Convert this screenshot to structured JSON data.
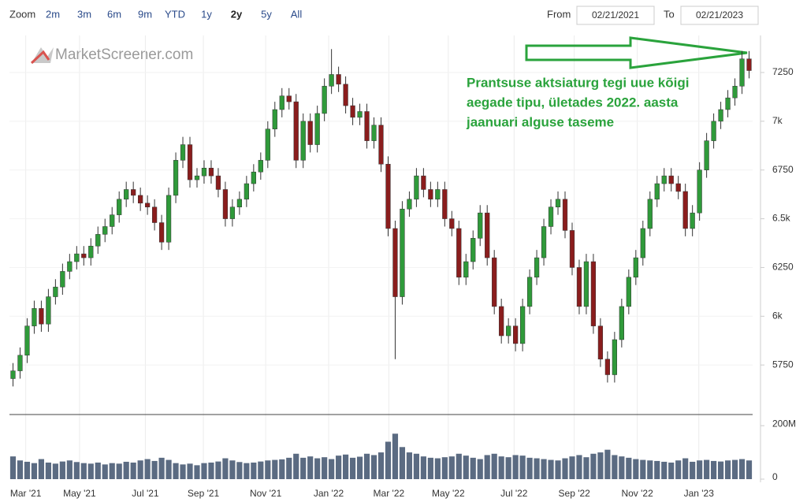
{
  "toolbar": {
    "zoom_label": "Zoom",
    "buttons": [
      "2m",
      "3m",
      "6m",
      "9m",
      "YTD",
      "1y",
      "2y",
      "5y",
      "All"
    ],
    "active": "2y",
    "from_label": "From",
    "from": "02/21/2021",
    "to_label": "To",
    "to": "02/21/2023"
  },
  "chart_data": {
    "type": "candlestick",
    "watermark": "MarketScreener.com",
    "annotation": [
      "Prantsuse aktsiaturg tegi uue kõigi",
      "aegade tipu, ületades 2022. aasta",
      "jaanuari alguse taseme"
    ],
    "up_color": "#2f9a3a",
    "down_color": "#8a1d1d",
    "volume_color": "#5b6b82",
    "grid": true,
    "xlim": [
      0,
      105
    ],
    "xticks": [
      {
        "value": 2.3,
        "label": "Mar '21"
      },
      {
        "value": 9.9,
        "label": "May '21"
      },
      {
        "value": 19.2,
        "label": "Jul '21"
      },
      {
        "value": 27.4,
        "label": "Sep '21"
      },
      {
        "value": 36.2,
        "label": "Nov '21"
      },
      {
        "value": 45.1,
        "label": "Jan '22"
      },
      {
        "value": 53.6,
        "label": "Mar '22"
      },
      {
        "value": 62,
        "label": "May '22"
      },
      {
        "value": 71.3,
        "label": "Jul '22"
      },
      {
        "value": 79.8,
        "label": "Sep '22"
      },
      {
        "value": 88.7,
        "label": "Nov '22"
      },
      {
        "value": 97.4,
        "label": "Jan '23"
      }
    ],
    "ylim": [
      5500,
      7440
    ],
    "yticks": [
      5750,
      6000,
      6250,
      6500,
      6750,
      7000,
      7250
    ],
    "ytick_labels": [
      "5750",
      "6k",
      "6250",
      "6.5k",
      "6750",
      "7k",
      "7250"
    ],
    "open": [
      5680,
      5720,
      5800,
      5950,
      6040,
      5960,
      6100,
      6150,
      6230,
      6280,
      6320,
      6300,
      6360,
      6420,
      6460,
      6520,
      6600,
      6650,
      6620,
      6580,
      6560,
      6480,
      6380,
      6620,
      6800,
      6880,
      6700,
      6720,
      6760,
      6720,
      6650,
      6500,
      6560,
      6600,
      6680,
      6740,
      6800,
      6960,
      7060,
      7130,
      7100,
      6800,
      7000,
      6880,
      7040,
      7180,
      7240,
      7190,
      7080,
      7020,
      7050,
      6900,
      6980,
      6780,
      6450,
      6100,
      6550,
      6600,
      6720,
      6650,
      6600,
      6650,
      6500,
      6450,
      6200,
      6280,
      6400,
      6530,
      6300,
      6050,
      5900,
      5950,
      5860,
      6050,
      6200,
      6300,
      6460,
      6560,
      6600,
      6440,
      6250,
      6050,
      6280,
      5950,
      5780,
      5700,
      5880,
      6050,
      6200,
      6300,
      6450,
      6600,
      6680,
      6720,
      6680,
      6640,
      6450,
      6530,
      6750,
      6900,
      7000,
      7060,
      7120,
      7180,
      7320
    ],
    "high": [
      5760,
      5840,
      5990,
      6080,
      6080,
      6140,
      6190,
      6270,
      6320,
      6360,
      6360,
      6400,
      6460,
      6500,
      6560,
      6640,
      6690,
      6690,
      6660,
      6620,
      6600,
      6520,
      6660,
      6840,
      6920,
      6920,
      6760,
      6800,
      6800,
      6760,
      6690,
      6600,
      6640,
      6720,
      6780,
      6840,
      7000,
      7100,
      7170,
      7170,
      7140,
      7040,
      7040,
      7080,
      7220,
      7370,
      7280,
      7230,
      7120,
      7090,
      7090,
      7020,
      7020,
      6820,
      6490,
      6590,
      6640,
      6760,
      6760,
      6690,
      6690,
      6690,
      6540,
      6490,
      6320,
      6440,
      6570,
      6570,
      6340,
      6090,
      5990,
      5990,
      6090,
      6240,
      6340,
      6500,
      6600,
      6640,
      6640,
      6480,
      6290,
      6320,
      6320,
      5990,
      5820,
      5920,
      6090,
      6240,
      6340,
      6490,
      6640,
      6720,
      6760,
      6760,
      6720,
      6680,
      6570,
      6790,
      6940,
      7040,
      7100,
      7160,
      7220,
      7360,
      7360
    ],
    "low": [
      5640,
      5680,
      5760,
      5910,
      5920,
      5920,
      6060,
      6110,
      6190,
      6240,
      6260,
      6260,
      6320,
      6380,
      6420,
      6480,
      6560,
      6580,
      6540,
      6520,
      6440,
      6340,
      6340,
      6580,
      6760,
      6660,
      6660,
      6680,
      6680,
      6610,
      6460,
      6460,
      6520,
      6560,
      6640,
      6700,
      6760,
      6920,
      7020,
      7060,
      6760,
      6760,
      6840,
      6840,
      7000,
      7140,
      7150,
      7040,
      6980,
      6980,
      6860,
      6860,
      6740,
      6410,
      5780,
      6060,
      6510,
      6560,
      6610,
      6560,
      6560,
      6460,
      6410,
      6160,
      6160,
      6240,
      6360,
      6260,
      6010,
      5860,
      5860,
      5820,
      5820,
      6010,
      6160,
      6260,
      6420,
      6520,
      6400,
      6210,
      6010,
      6010,
      5910,
      5740,
      5660,
      5660,
      5840,
      6010,
      6160,
      6260,
      6410,
      6560,
      6640,
      6640,
      6600,
      6410,
      6410,
      6490,
      6710,
      6860,
      6960,
      7020,
      7080,
      7140,
      7220
    ],
    "close": [
      5720,
      5800,
      5950,
      6040,
      5960,
      6100,
      6150,
      6230,
      6280,
      6320,
      6300,
      6360,
      6420,
      6460,
      6520,
      6600,
      6650,
      6620,
      6580,
      6560,
      6480,
      6380,
      6620,
      6800,
      6880,
      6700,
      6720,
      6760,
      6720,
      6650,
      6500,
      6560,
      6600,
      6680,
      6740,
      6800,
      6960,
      7060,
      7130,
      7100,
      6800,
      7000,
      6880,
      7040,
      7180,
      7240,
      7190,
      7080,
      7020,
      7050,
      6900,
      6980,
      6780,
      6450,
      6100,
      6550,
      6600,
      6720,
      6650,
      6600,
      6650,
      6500,
      6450,
      6200,
      6280,
      6400,
      6530,
      6300,
      6050,
      5900,
      5950,
      5860,
      6050,
      6200,
      6300,
      6460,
      6560,
      6600,
      6440,
      6250,
      6050,
      6280,
      5950,
      5780,
      5700,
      5880,
      6050,
      6200,
      6300,
      6450,
      6600,
      6680,
      6720,
      6680,
      6640,
      6450,
      6530,
      6750,
      6900,
      7000,
      7060,
      7120,
      7180,
      7320,
      7260
    ],
    "volume": [
      85000000,
      70000000,
      65000000,
      60000000,
      75000000,
      62000000,
      58000000,
      66000000,
      70000000,
      64000000,
      60000000,
      58000000,
      62000000,
      55000000,
      60000000,
      58000000,
      65000000,
      62000000,
      70000000,
      75000000,
      68000000,
      80000000,
      72000000,
      60000000,
      55000000,
      58000000,
      52000000,
      60000000,
      62000000,
      66000000,
      78000000,
      70000000,
      64000000,
      60000000,
      62000000,
      66000000,
      70000000,
      72000000,
      74000000,
      80000000,
      95000000,
      80000000,
      85000000,
      78000000,
      82000000,
      75000000,
      88000000,
      92000000,
      80000000,
      84000000,
      95000000,
      90000000,
      100000000,
      140000000,
      170000000,
      120000000,
      100000000,
      95000000,
      85000000,
      80000000,
      78000000,
      82000000,
      85000000,
      95000000,
      88000000,
      80000000,
      75000000,
      90000000,
      95000000,
      85000000,
      82000000,
      90000000,
      88000000,
      80000000,
      78000000,
      75000000,
      72000000,
      70000000,
      78000000,
      85000000,
      90000000,
      82000000,
      95000000,
      100000000,
      110000000,
      90000000,
      85000000,
      80000000,
      75000000,
      72000000,
      70000000,
      68000000,
      65000000,
      62000000,
      70000000,
      78000000,
      65000000,
      70000000,
      72000000,
      68000000,
      66000000,
      70000000,
      72000000,
      75000000,
      70000000
    ],
    "volume_ylim": [
      0,
      224000000
    ],
    "volume_yticks": [
      0,
      {
        "value": 200000000,
        "label": "200M"
      }
    ]
  }
}
